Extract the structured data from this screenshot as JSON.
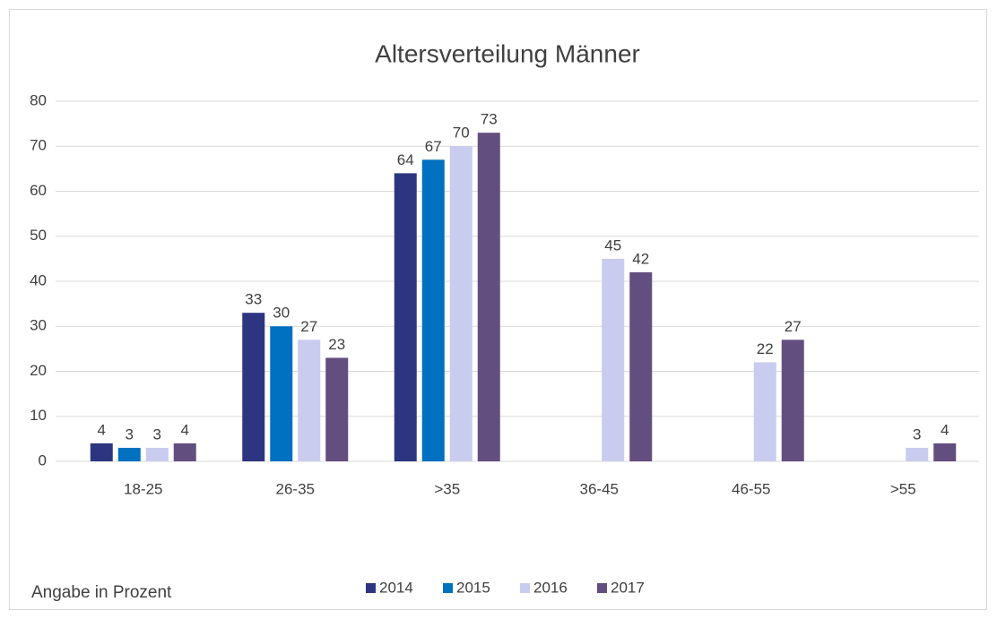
{
  "chart_data": {
    "type": "bar",
    "title": "Altersverteilung Männer",
    "annotation": "Angabe in Prozent",
    "categories": [
      "18-25",
      "26-35",
      ">35",
      "36-45",
      "46-55",
      ">55"
    ],
    "series": [
      {
        "name": "2014",
        "color": "#2e3580",
        "values": [
          4,
          33,
          64,
          null,
          null,
          null
        ]
      },
      {
        "name": "2015",
        "color": "#0070c0",
        "values": [
          3,
          30,
          67,
          null,
          null,
          null
        ]
      },
      {
        "name": "2016",
        "color": "#c9cbef",
        "values": [
          3,
          27,
          70,
          45,
          22,
          3
        ]
      },
      {
        "name": "2017",
        "color": "#634e80",
        "values": [
          4,
          23,
          73,
          42,
          27,
          4
        ]
      }
    ],
    "ylim": [
      0,
      80
    ],
    "yticks": [
      0,
      10,
      20,
      30,
      40,
      50,
      60,
      70,
      80
    ],
    "grid": true,
    "legend": "bottom"
  }
}
